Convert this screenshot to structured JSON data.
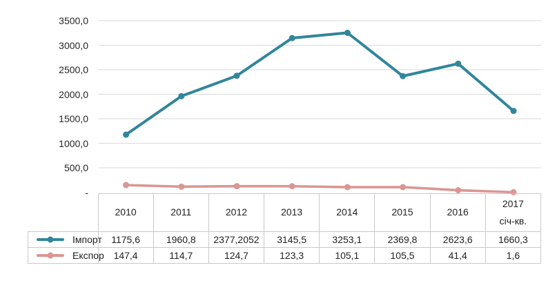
{
  "figure": {
    "background": "#ffffff"
  },
  "chart_data": {
    "type": "line",
    "title": "",
    "xlabel": "",
    "ylabel": "",
    "grid": true,
    "legend_position": "left-of-data-table",
    "categories": [
      "2010",
      "2011",
      "2012",
      "2013",
      "2014",
      "2015",
      "2016",
      "2017 січ-кв."
    ],
    "series": [
      {
        "name": "Імпорт",
        "values": [
          1175.6,
          1960.8,
          2377.2052,
          3145.5,
          3253.1,
          2369.8,
          2623.6,
          1660.3
        ],
        "color": "#31869B"
      },
      {
        "name": "Експор",
        "values": [
          147.4,
          114.7,
          124.7,
          123.3,
          105.1,
          105.5,
          41.4,
          1.6
        ],
        "color": "#D99694"
      }
    ],
    "ylim": [
      0,
      3500
    ],
    "yticks": [
      {
        "value": 3500,
        "label": "3500,0"
      },
      {
        "value": 3000,
        "label": "3000,0"
      },
      {
        "value": 2500,
        "label": "2500,0"
      },
      {
        "value": 2000,
        "label": "2000,0"
      },
      {
        "value": 1500,
        "label": "1500,0"
      },
      {
        "value": 1000,
        "label": "1000,0"
      },
      {
        "value": 500,
        "label": "500,0"
      },
      {
        "value": 0,
        "label": "-"
      }
    ]
  },
  "data_table": {
    "columns": [
      {
        "label": "2010"
      },
      {
        "label": "2011"
      },
      {
        "label": "2012"
      },
      {
        "label": "2013"
      },
      {
        "label": "2014"
      },
      {
        "label": "2015"
      },
      {
        "label": "2016"
      },
      {
        "label": "2017",
        "sublabel": "січ-кв."
      }
    ],
    "rows": [
      {
        "label": "Імпорт",
        "values": [
          "1175,6",
          "1960,8",
          "2377,2052",
          "3145,5",
          "3253,1",
          "2369,8",
          "2623,6",
          "1660,3"
        ]
      },
      {
        "label": "Експор",
        "values": [
          "147,4",
          "114,7",
          "124,7",
          "123,3",
          "105,1",
          "105,5",
          "41,4",
          "1,6"
        ]
      }
    ]
  },
  "colors": {
    "import_line": "#31869B",
    "export_line": "#D99694",
    "gridline": "#D9D9D9",
    "table_border": "#C9C9C9",
    "text": "#1F1F1F"
  }
}
